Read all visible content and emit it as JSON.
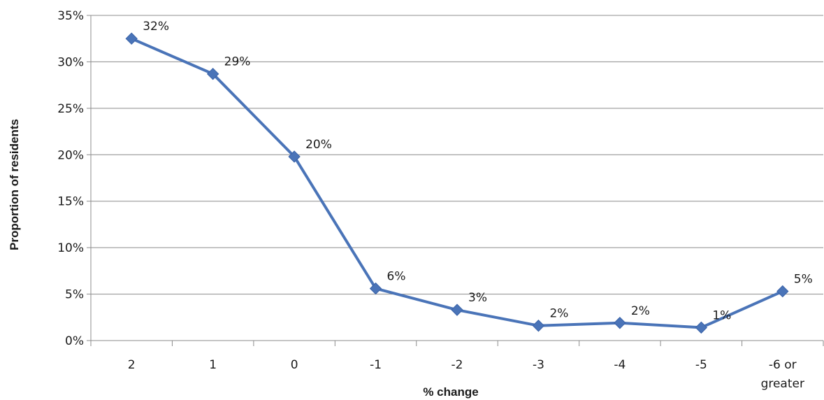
{
  "chart_data": {
    "type": "line",
    "title": "",
    "xlabel": "% change",
    "ylabel": "Proportion of residents",
    "categories": [
      [
        "2"
      ],
      [
        "1"
      ],
      [
        "0"
      ],
      [
        "-1"
      ],
      [
        "-2"
      ],
      [
        "-3"
      ],
      [
        "-4"
      ],
      [
        "-5"
      ],
      [
        "-6 or",
        "greater"
      ]
    ],
    "values": [
      32.5,
      28.7,
      19.8,
      5.6,
      3.3,
      1.6,
      1.9,
      1.4,
      5.3
    ],
    "data_labels": [
      "32%",
      "29%",
      "20%",
      "6%",
      "3%",
      "2%",
      "2%",
      "1%",
      "5%"
    ],
    "ylim": [
      0,
      35
    ],
    "yticks": [
      0,
      5,
      10,
      15,
      20,
      25,
      30,
      35
    ],
    "ytick_labels": [
      "0%",
      "5%",
      "10%",
      "15%",
      "20%",
      "25%",
      "30%",
      "35%"
    ],
    "grid": true,
    "legend": "none",
    "line_color": "#4a74b8",
    "marker": "diamond"
  }
}
